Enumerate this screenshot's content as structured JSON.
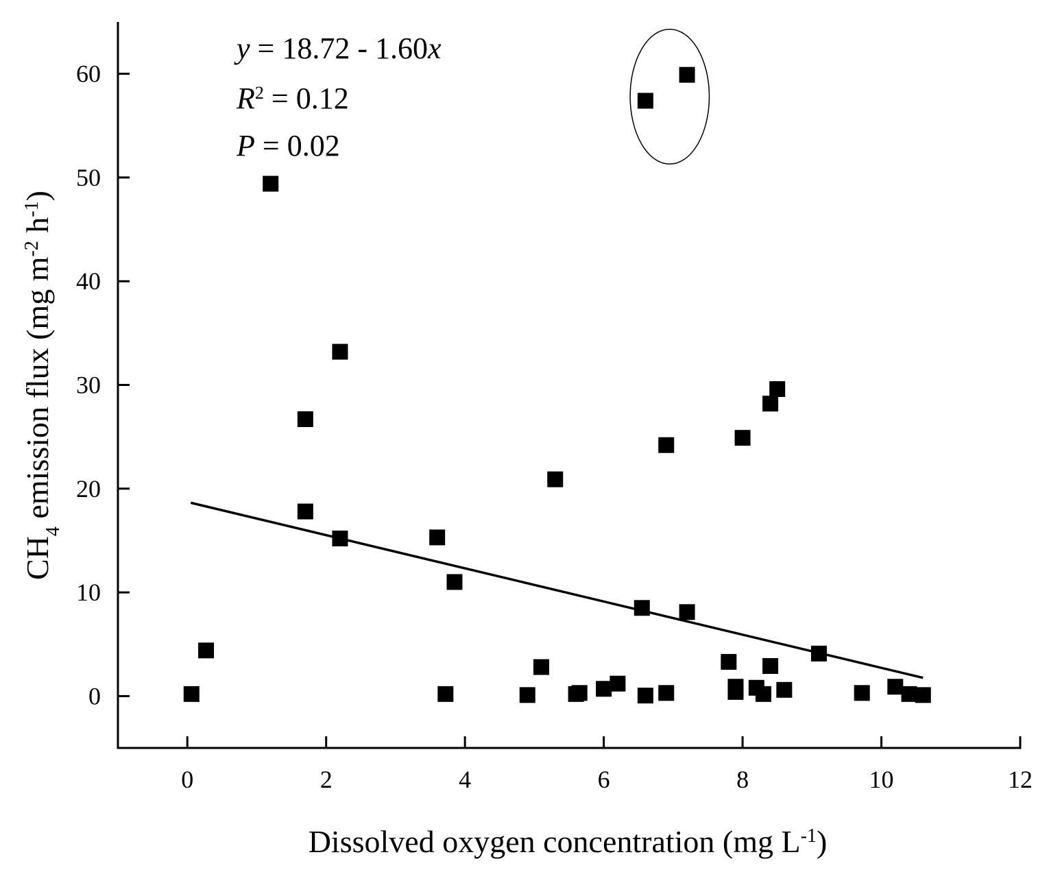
{
  "chart_data": {
    "type": "scatter",
    "xlabel": "Dissolved oxygen concentration (mg L-1)",
    "xlabel_parts": {
      "main": "Dissolved oxygen concentration (mg L",
      "sup": "-1",
      "end": ")"
    },
    "ylabel": "CH4 emission flux (mg m-2 h-1)",
    "ylabel_parts": {
      "a": "CH",
      "sub": "4",
      "b": " emission flux (mg m",
      "sup1": "-2",
      "c": " h",
      "sup2": "-1",
      "d": ")"
    },
    "xlim": [
      -1,
      12
    ],
    "ylim": [
      -5,
      65
    ],
    "xticks": [
      0,
      2,
      4,
      6,
      8,
      10,
      12
    ],
    "yticks": [
      0,
      10,
      20,
      30,
      40,
      50,
      60
    ],
    "grid": false,
    "legend": "none",
    "marker": "square",
    "marker_color": "#000000",
    "points": [
      [
        0.06,
        0.2
      ],
      [
        0.27,
        4.4
      ],
      [
        1.2,
        49.4
      ],
      [
        1.7,
        26.7
      ],
      [
        1.7,
        17.8
      ],
      [
        2.2,
        33.2
      ],
      [
        2.2,
        15.2
      ],
      [
        3.6,
        15.3
      ],
      [
        3.72,
        0.2
      ],
      [
        3.85,
        11.0
      ],
      [
        4.9,
        0.1
      ],
      [
        5.1,
        2.8
      ],
      [
        5.3,
        20.9
      ],
      [
        5.6,
        0.2
      ],
      [
        5.65,
        0.3
      ],
      [
        6.0,
        0.7
      ],
      [
        6.2,
        1.2
      ],
      [
        6.55,
        8.5
      ],
      [
        6.6,
        0.05
      ],
      [
        6.6,
        57.4
      ],
      [
        6.9,
        24.2
      ],
      [
        6.9,
        0.3
      ],
      [
        7.2,
        8.1
      ],
      [
        7.2,
        59.9
      ],
      [
        7.8,
        3.3
      ],
      [
        7.9,
        0.9
      ],
      [
        7.9,
        0.4
      ],
      [
        8.0,
        24.9
      ],
      [
        8.2,
        0.8
      ],
      [
        8.3,
        0.2
      ],
      [
        8.4,
        28.2
      ],
      [
        8.4,
        2.9
      ],
      [
        8.5,
        29.6
      ],
      [
        8.6,
        0.6
      ],
      [
        9.1,
        4.1
      ],
      [
        9.72,
        0.3
      ],
      [
        10.2,
        0.9
      ],
      [
        10.4,
        0.2
      ],
      [
        10.6,
        0.1
      ]
    ],
    "regression": {
      "intercept": 18.72,
      "slope": -1.6,
      "x_range": [
        0.05,
        10.6
      ]
    },
    "highlight_ellipse": {
      "center": [
        6.95,
        57.8
      ],
      "rx": 0.57,
      "ry": 6.5
    },
    "annotations": {
      "equation": {
        "y_var": "y",
        "rest": " = 18.72 - 1.60",
        "x_var": "x"
      },
      "r2": {
        "var": "R",
        "sup": "2",
        "rest": " = 0.12"
      },
      "p": {
        "var": "P",
        "rest": " = 0.02"
      }
    }
  }
}
